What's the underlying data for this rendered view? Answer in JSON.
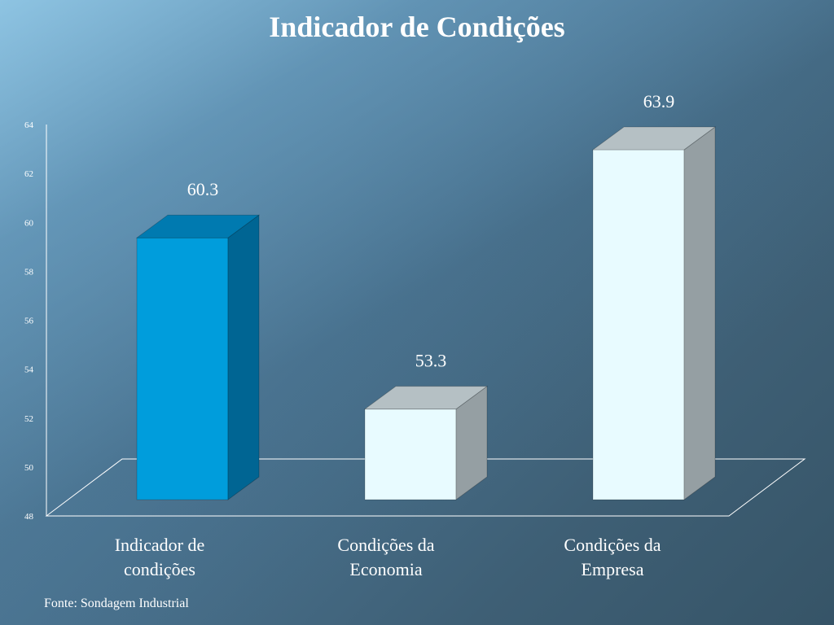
{
  "chart_data": {
    "type": "bar",
    "title": "Indicador de Condições",
    "categories": [
      [
        "Indicador de",
        "condições"
      ],
      [
        "Condições da",
        "Economia"
      ],
      [
        "Condições da",
        "Empresa"
      ]
    ],
    "values": [
      60.3,
      53.3,
      63.9
    ],
    "value_labels": [
      "60.3",
      "53.3",
      "63.9"
    ],
    "ylim": [
      48,
      64
    ],
    "yticks": [
      48,
      50,
      52,
      54,
      56,
      58,
      60,
      62,
      64
    ],
    "grid": false,
    "bar_colors": [
      {
        "front": "#009ddc",
        "side": "#006593",
        "top": "#007ab0"
      },
      {
        "front": "#e8fbff",
        "side": "#959fa3",
        "top": "#b5c0c4"
      },
      {
        "front": "#e8fbff",
        "side": "#959fa3",
        "top": "#b5c0c4"
      }
    ]
  },
  "source": "Fonte: Sondagem Industrial"
}
